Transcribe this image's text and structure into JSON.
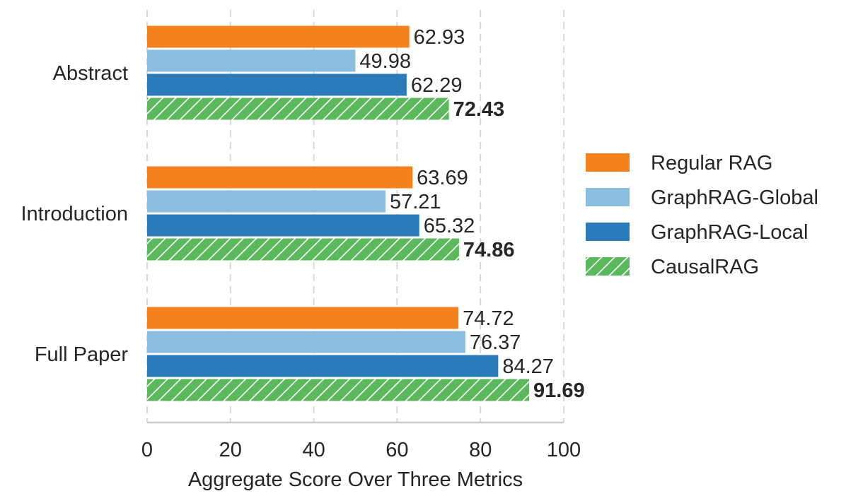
{
  "chart_data": {
    "type": "bar",
    "orientation": "horizontal",
    "title": "",
    "xlabel": "Aggregate Score Over Three Metrics",
    "ylabel": "",
    "xlim": [
      0,
      100
    ],
    "xticks": [
      0,
      20,
      40,
      60,
      80,
      100
    ],
    "categories": [
      "Abstract",
      "Introduction",
      "Full Paper"
    ],
    "series": [
      {
        "name": "Regular RAG",
        "color": "#f5821f",
        "hatch": false,
        "bold_labels": false,
        "values": [
          62.93,
          63.69,
          74.72
        ],
        "labels": [
          "62.93",
          "63.69",
          "74.72"
        ]
      },
      {
        "name": "GraphRAG-Global",
        "color": "#8bbddf",
        "hatch": false,
        "bold_labels": false,
        "values": [
          49.98,
          57.21,
          76.37
        ],
        "labels": [
          "49.98",
          "57.21",
          "76.37"
        ]
      },
      {
        "name": "GraphRAG-Local",
        "color": "#2b7bba",
        "hatch": false,
        "bold_labels": false,
        "values": [
          62.29,
          65.32,
          84.27
        ],
        "labels": [
          "62.29",
          "65.32",
          "84.27"
        ]
      },
      {
        "name": "CausalRAG",
        "color": "#5cb85c",
        "hatch": true,
        "bold_labels": true,
        "values": [
          72.43,
          74.86,
          91.69
        ],
        "labels": [
          "72.43",
          "74.86",
          "91.69"
        ]
      }
    ],
    "grid": "vertical dashed",
    "legend": "right"
  }
}
